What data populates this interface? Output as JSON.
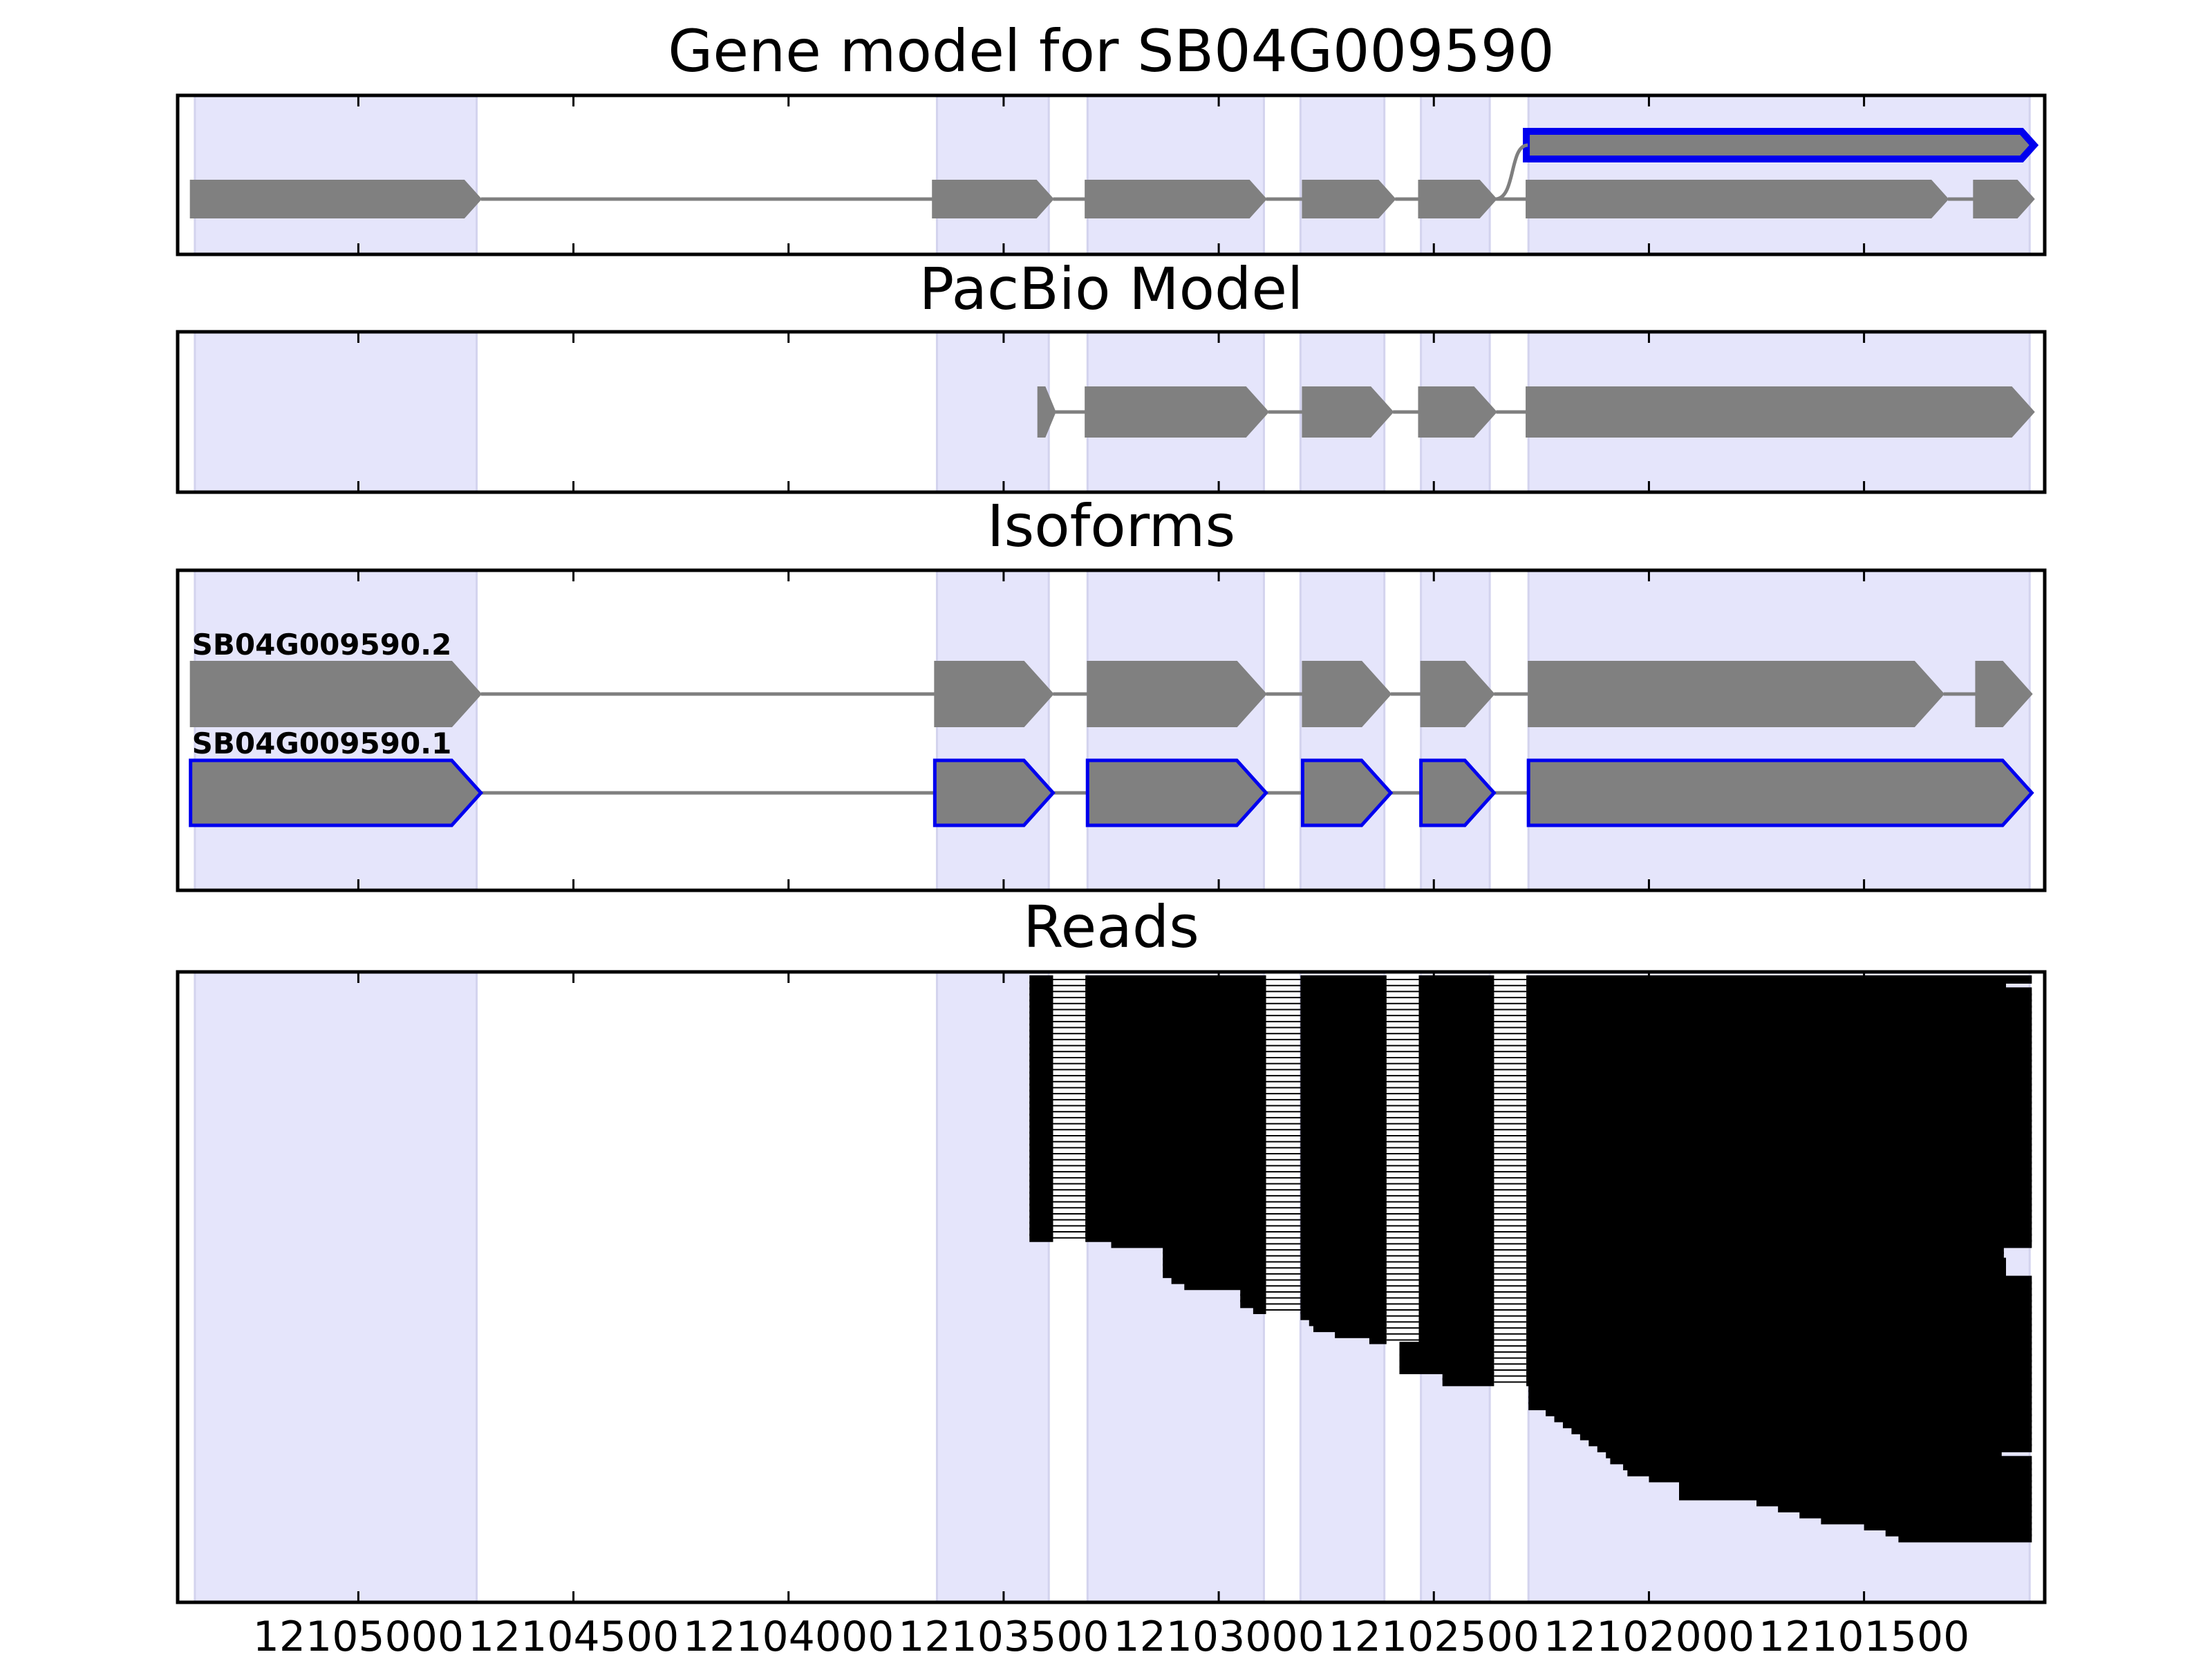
{
  "chart_data": {
    "type": "gene-structure",
    "xlim": [
      12105420,
      12101080
    ],
    "x_ticks": [
      12105000,
      12104500,
      12104000,
      12103500,
      12103000,
      12102500,
      12102000,
      12101500
    ],
    "x_tick_labels": [
      "12105000",
      "12104500",
      "12104000",
      "12103500",
      "12103000",
      "12102500",
      "12102000",
      "12101500"
    ],
    "shaded_regions": [
      [
        12105380,
        12104725
      ],
      [
        12103655,
        12103395
      ],
      [
        12103305,
        12102895
      ],
      [
        12102810,
        12102615
      ],
      [
        12102530,
        12102370
      ],
      [
        12102280,
        12101115
      ]
    ],
    "panels": [
      {
        "title": "Gene model for SB04G009590",
        "tracks": [
          {
            "label": "",
            "highlight": true,
            "exons": [
              [
                12102285,
                12101105
              ]
            ]
          },
          {
            "label": "",
            "highlight": false,
            "exons": [
              [
                12105390,
                12104715
              ],
              [
                12103665,
                12103385
              ],
              [
                12103310,
                12102890
              ],
              [
                12102805,
                12102590
              ],
              [
                12102535,
                12102355
              ],
              [
                12102285,
                12101305
              ],
              [
                12101245,
                12101105
              ]
            ]
          }
        ]
      },
      {
        "title": "PacBio Model",
        "tracks": [
          {
            "label": "",
            "highlight": false,
            "exons": [
              [
                12103420,
                12103380
              ],
              [
                12103310,
                12102885
              ],
              [
                12102805,
                12102595
              ],
              [
                12102535,
                12102355
              ],
              [
                12102285,
                12101105
              ]
            ]
          }
        ]
      },
      {
        "title": "Isoforms",
        "tracks": [
          {
            "label": "SB04G009590.2",
            "highlight": false,
            "exons": [
              [
                12105390,
                12104715
              ],
              [
                12103660,
                12103385
              ],
              [
                12103305,
                12102890
              ],
              [
                12102805,
                12102600
              ],
              [
                12102530,
                12102360
              ],
              [
                12102280,
                12101315
              ],
              [
                12101240,
                12101110
              ]
            ]
          },
          {
            "label": "SB04G009590.1",
            "highlight": true,
            "exons": [
              [
                12105390,
                12104715
              ],
              [
                12103660,
                12103385
              ],
              [
                12103305,
                12102890
              ],
              [
                12102805,
                12102600
              ],
              [
                12102530,
                12102360
              ],
              [
                12102280,
                12101110
              ]
            ]
          }
        ]
      },
      {
        "title": "Reads",
        "reads": [
          [
            12103440,
            12101110
          ],
          [
            12103440,
            12101170
          ],
          [
            12103440,
            12101110
          ],
          [
            12103440,
            12101110
          ],
          [
            12103440,
            12101110
          ],
          [
            12103440,
            12101110
          ],
          [
            12103440,
            12101110
          ],
          [
            12103440,
            12101110
          ],
          [
            12103440,
            12101110
          ],
          [
            12103440,
            12101110
          ],
          [
            12103440,
            12101110
          ],
          [
            12103440,
            12101110
          ],
          [
            12103440,
            12101110
          ],
          [
            12103440,
            12101110
          ],
          [
            12103440,
            12101110
          ],
          [
            12103440,
            12101110
          ],
          [
            12103440,
            12101110
          ],
          [
            12103440,
            12101110
          ],
          [
            12103440,
            12101110
          ],
          [
            12103440,
            12101110
          ],
          [
            12103440,
            12101110
          ],
          [
            12103440,
            12101110
          ],
          [
            12103440,
            12101110
          ],
          [
            12103440,
            12101110
          ],
          [
            12103440,
            12101110
          ],
          [
            12103440,
            12101110
          ],
          [
            12103440,
            12101110
          ],
          [
            12103440,
            12101110
          ],
          [
            12103440,
            12101110
          ],
          [
            12103440,
            12101110
          ],
          [
            12103440,
            12101110
          ],
          [
            12103440,
            12101110
          ],
          [
            12103440,
            12101110
          ],
          [
            12103440,
            12101110
          ],
          [
            12103440,
            12101110
          ],
          [
            12103440,
            12101110
          ],
          [
            12103440,
            12101110
          ],
          [
            12103440,
            12101110
          ],
          [
            12103440,
            12101110
          ],
          [
            12103440,
            12101110
          ],
          [
            12103440,
            12101110
          ],
          [
            12103440,
            12101110
          ],
          [
            12103440,
            12101110
          ],
          [
            12103440,
            12101110
          ],
          [
            12103250,
            12101110
          ],
          [
            12103130,
            12101175
          ],
          [
            12103130,
            12101175
          ],
          [
            12103130,
            12101170
          ],
          [
            12103130,
            12101170
          ],
          [
            12103130,
            12101170
          ],
          [
            12103110,
            12101110
          ],
          [
            12103080,
            12101110
          ],
          [
            12102950,
            12101110
          ],
          [
            12102950,
            12101110
          ],
          [
            12102950,
            12101110
          ],
          [
            12102920,
            12101110
          ],
          [
            12102810,
            12101110
          ],
          [
            12102790,
            12101110
          ],
          [
            12102780,
            12101110
          ],
          [
            12102730,
            12101110
          ],
          [
            12102650,
            12101110
          ],
          [
            12102580,
            12101110
          ],
          [
            12102580,
            12101110
          ],
          [
            12102580,
            12101110
          ],
          [
            12102580,
            12101110
          ],
          [
            12102580,
            12101110
          ],
          [
            12102480,
            12101110
          ],
          [
            12102480,
            12101110
          ],
          [
            12102280,
            12101110
          ],
          [
            12102280,
            12101110
          ],
          [
            12102280,
            12101110
          ],
          [
            12102280,
            12101110
          ],
          [
            12102240,
            12101110
          ],
          [
            12102220,
            12101110
          ],
          [
            12102200,
            12101110
          ],
          [
            12102180,
            12101110
          ],
          [
            12102160,
            12101110
          ],
          [
            12102140,
            12101110
          ],
          [
            12102120,
            12101110
          ],
          [
            12102100,
            12101180
          ],
          [
            12102090,
            12101110
          ],
          [
            12102060,
            12101110
          ],
          [
            12102050,
            12101110
          ],
          [
            12102000,
            12101110
          ],
          [
            12101930,
            12101110
          ],
          [
            12101930,
            12101110
          ],
          [
            12101930,
            12101110
          ],
          [
            12101750,
            12101110
          ],
          [
            12101700,
            12101110
          ],
          [
            12101650,
            12101110
          ],
          [
            12101600,
            12101110
          ],
          [
            12101500,
            12101110
          ],
          [
            12101450,
            12101110
          ],
          [
            12101420,
            12101110
          ]
        ]
      }
    ]
  }
}
